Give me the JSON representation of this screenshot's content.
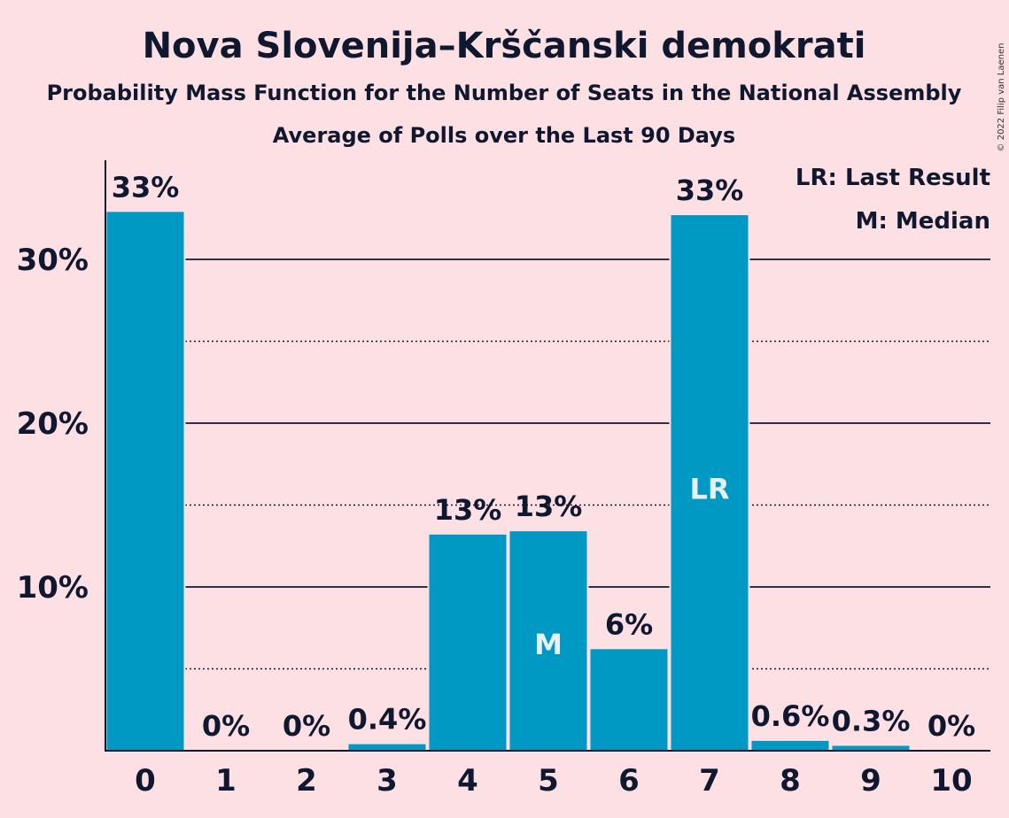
{
  "title": "Nova Slovenija–Krščanski demokrati",
  "subtitle": "Probability Mass Function for the Number of Seats in the National Assembly",
  "subtitle2": "Average of Polls over the Last 90 Days",
  "copyright": "© 2022 Filip van Laenen",
  "legend": {
    "lr": "LR: Last Result",
    "m": "M: Median"
  },
  "colors": {
    "background": "#fde0e3",
    "bar": "#0099c4",
    "text": "#101830"
  },
  "chart_data": {
    "type": "bar",
    "title": "Nova Slovenija–Krščanski demokrati",
    "categories": [
      "0",
      "1",
      "2",
      "3",
      "4",
      "5",
      "6",
      "7",
      "8",
      "9",
      "10"
    ],
    "values": [
      32.9,
      0,
      0,
      0.4,
      13.2,
      13.4,
      6.2,
      32.7,
      0.6,
      0.3,
      0
    ],
    "data_labels": [
      "33%",
      "0%",
      "0%",
      "0.4%",
      "13%",
      "13%",
      "6%",
      "33%",
      "0.6%",
      "0.3%",
      "0%"
    ],
    "y_ticks": [
      10,
      20,
      30
    ],
    "y_tick_labels": [
      "10%",
      "20%",
      "30%"
    ],
    "y_minor_ticks": [
      5,
      15,
      25
    ],
    "ylim": [
      0,
      36
    ],
    "median_category": "5",
    "median_label": "M",
    "last_result_category": "7",
    "last_result_label": "LR",
    "grid": true,
    "legend_position": "top-right"
  }
}
